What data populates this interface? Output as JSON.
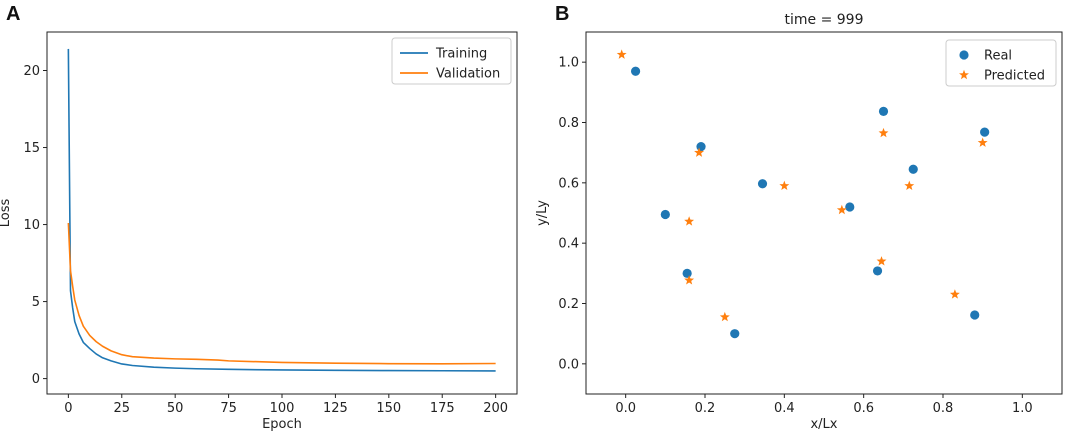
{
  "chart_data": [
    {
      "panel": "A",
      "type": "line",
      "title": "",
      "xlabel": "Epoch",
      "ylabel": "Loss",
      "xlim": [
        -10,
        210
      ],
      "ylim": [
        -1,
        22.5
      ],
      "xticks": [
        0,
        25,
        50,
        75,
        100,
        125,
        150,
        175,
        200
      ],
      "yticks": [
        0,
        5,
        10,
        15,
        20
      ],
      "legend_position": "top-right",
      "series": [
        {
          "name": "Training",
          "color": "#1f77b4",
          "x": [
            0,
            1,
            2,
            3,
            5,
            7,
            10,
            13,
            16,
            20,
            25,
            30,
            40,
            50,
            60,
            75,
            100,
            125,
            150,
            175,
            200
          ],
          "y": [
            21.4,
            5.7,
            4.6,
            3.7,
            2.9,
            2.35,
            1.95,
            1.6,
            1.35,
            1.15,
            0.95,
            0.85,
            0.74,
            0.68,
            0.64,
            0.6,
            0.56,
            0.54,
            0.52,
            0.51,
            0.5
          ]
        },
        {
          "name": "Validation",
          "color": "#ff7f0e",
          "x": [
            0,
            1,
            2,
            3,
            5,
            7,
            10,
            13,
            16,
            20,
            25,
            30,
            40,
            50,
            60,
            70,
            75,
            100,
            125,
            150,
            175,
            200
          ],
          "y": [
            10.1,
            7.0,
            6.0,
            5.1,
            4.1,
            3.4,
            2.8,
            2.4,
            2.1,
            1.8,
            1.55,
            1.42,
            1.33,
            1.28,
            1.25,
            1.2,
            1.15,
            1.05,
            1.0,
            0.97,
            0.96,
            0.98
          ]
        }
      ]
    },
    {
      "panel": "B",
      "type": "scatter",
      "title": "time = 999",
      "xlabel": "x/Lx",
      "ylabel": "y/Ly",
      "xlim": [
        -0.1,
        1.1
      ],
      "ylim": [
        -0.1,
        1.1
      ],
      "xticks": [
        0.0,
        0.2,
        0.4,
        0.6,
        0.8,
        1.0
      ],
      "yticks": [
        0.0,
        0.2,
        0.4,
        0.6,
        0.8,
        1.0
      ],
      "legend_position": "top-right",
      "series": [
        {
          "name": "Real",
          "marker": "circle",
          "color": "#1f77b4",
          "points": [
            [
              0.025,
              0.97
            ],
            [
              0.1,
              0.495
            ],
            [
              0.155,
              0.3
            ],
            [
              0.19,
              0.72
            ],
            [
              0.275,
              0.1
            ],
            [
              0.345,
              0.597
            ],
            [
              0.565,
              0.52
            ],
            [
              0.635,
              0.308
            ],
            [
              0.65,
              0.837
            ],
            [
              0.725,
              0.645
            ],
            [
              0.88,
              0.162
            ],
            [
              0.905,
              0.768
            ]
          ]
        },
        {
          "name": "Predicted",
          "marker": "star",
          "color": "#ff7f0e",
          "points": [
            [
              -0.01,
              1.025
            ],
            [
              0.16,
              0.472
            ],
            [
              0.16,
              0.277
            ],
            [
              0.185,
              0.7
            ],
            [
              0.25,
              0.155
            ],
            [
              0.4,
              0.59
            ],
            [
              0.545,
              0.51
            ],
            [
              0.645,
              0.34
            ],
            [
              0.65,
              0.765
            ],
            [
              0.715,
              0.59
            ],
            [
              0.83,
              0.23
            ],
            [
              0.9,
              0.733
            ]
          ]
        }
      ]
    }
  ]
}
